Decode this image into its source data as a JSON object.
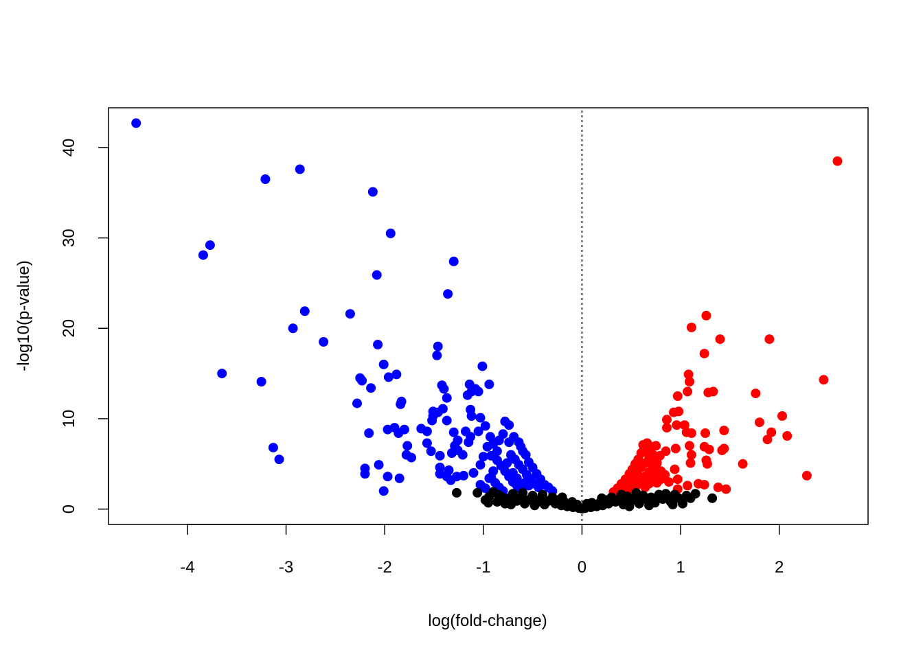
{
  "chart_data": {
    "type": "scatter",
    "title": "",
    "xlabel": "log(fold-change)",
    "ylabel": "-log10(p-value)",
    "xlim": [
      -4.8,
      2.9
    ],
    "ylim": [
      -1.7,
      44.4
    ],
    "x_ticks": [
      -4,
      -3,
      -2,
      -1,
      0,
      1,
      2
    ],
    "x_tick_labels": [
      "-4",
      "-3",
      "-2",
      "-1",
      "0",
      "1",
      "2"
    ],
    "y_ticks": [
      0,
      10,
      20,
      30,
      40
    ],
    "y_tick_labels": [
      "0",
      "10",
      "20",
      "30",
      "40"
    ],
    "vline": {
      "x": 0,
      "style": "dotted",
      "color": "#000000"
    },
    "grid": false,
    "series": [
      {
        "color": "#0000ff",
        "points": [
          [
            -4.52,
            42.7
          ],
          [
            -3.21,
            36.5
          ],
          [
            -2.86,
            37.6
          ],
          [
            -2.12,
            35.1
          ],
          [
            -1.94,
            30.5
          ],
          [
            -3.77,
            29.2
          ],
          [
            -3.84,
            28.1
          ],
          [
            -2.08,
            25.9
          ],
          [
            -1.3,
            27.4
          ],
          [
            -1.36,
            23.8
          ],
          [
            -2.81,
            21.9
          ],
          [
            -2.93,
            20.0
          ],
          [
            -2.35,
            21.6
          ],
          [
            -2.62,
            18.5
          ],
          [
            -2.07,
            18.2
          ],
          [
            -3.65,
            15.0
          ],
          [
            -3.25,
            14.1
          ],
          [
            -2.25,
            14.5
          ],
          [
            -2.23,
            14.2
          ],
          [
            -2.01,
            16.0
          ],
          [
            -1.96,
            14.6
          ],
          [
            -1.88,
            14.9
          ],
          [
            -2.14,
            13.4
          ],
          [
            -1.46,
            18.0
          ],
          [
            -1.47,
            17.0
          ],
          [
            -1.01,
            15.8
          ],
          [
            -1.14,
            13.8
          ],
          [
            -0.94,
            13.8
          ],
          [
            -1.42,
            13.7
          ],
          [
            -1.4,
            13.3
          ],
          [
            -1.12,
            13.0
          ],
          [
            -1.08,
            13.3
          ],
          [
            -1.05,
            13.0
          ],
          [
            -1.16,
            12.6
          ],
          [
            -1.37,
            12.3
          ],
          [
            -1.83,
            11.9
          ],
          [
            -1.84,
            11.6
          ],
          [
            -2.28,
            11.7
          ],
          [
            -1.51,
            10.8
          ],
          [
            -1.46,
            10.7
          ],
          [
            -1.13,
            11.0
          ],
          [
            -1.03,
            10.1
          ],
          [
            -1.51,
            10.3
          ],
          [
            -1.52,
            9.8
          ],
          [
            -1.41,
            11.1
          ],
          [
            -1.12,
            10.3
          ],
          [
            -1.9,
            9.0
          ],
          [
            -1.8,
            8.8
          ],
          [
            -1.97,
            8.8
          ],
          [
            -2.16,
            8.4
          ],
          [
            -1.86,
            8.4
          ],
          [
            -1.63,
            8.9
          ],
          [
            -1.57,
            8.6
          ],
          [
            -1.37,
            9.8
          ],
          [
            -1.3,
            8.5
          ],
          [
            -1.26,
            7.6
          ],
          [
            -1.18,
            8.6
          ],
          [
            -1.13,
            8.0
          ],
          [
            -1.05,
            8.6
          ],
          [
            -0.98,
            9.2
          ],
          [
            -0.93,
            8.0
          ],
          [
            -1.57,
            7.3
          ],
          [
            -1.53,
            6.4
          ],
          [
            -1.78,
            6.0
          ],
          [
            -1.73,
            5.7
          ],
          [
            -1.77,
            7.0
          ],
          [
            -1.29,
            7.0
          ],
          [
            -1.32,
            6.2
          ],
          [
            -1.26,
            6.5
          ],
          [
            -1.21,
            6.0
          ],
          [
            -1.15,
            7.4
          ],
          [
            -1.44,
            5.9
          ],
          [
            -1.44,
            4.6
          ],
          [
            -1.35,
            4.3
          ],
          [
            -1.44,
            3.9
          ],
          [
            -1.37,
            3.6
          ],
          [
            -1.33,
            3.2
          ],
          [
            -1.27,
            3.6
          ],
          [
            -1.2,
            3.7
          ],
          [
            -1.1,
            4.0
          ],
          [
            -1.03,
            4.9
          ],
          [
            -1.0,
            5.8
          ],
          [
            -0.96,
            6.9
          ],
          [
            -0.9,
            7.2
          ],
          [
            -0.84,
            7.6
          ],
          [
            -0.8,
            8.3
          ],
          [
            -0.78,
            9.7
          ],
          [
            -0.74,
            9.3
          ],
          [
            -0.69,
            8.0
          ],
          [
            -0.64,
            7.4
          ],
          [
            -0.6,
            6.4
          ],
          [
            -0.57,
            6.0
          ],
          [
            -0.54,
            5.2
          ],
          [
            -0.5,
            4.6
          ],
          [
            -0.46,
            3.9
          ],
          [
            -0.42,
            3.3
          ],
          [
            -0.38,
            2.7
          ],
          [
            -0.34,
            2.4
          ],
          [
            -0.3,
            2.0
          ],
          [
            -0.86,
            5.4
          ],
          [
            -0.82,
            4.8
          ],
          [
            -0.78,
            4.2
          ],
          [
            -0.74,
            3.6
          ],
          [
            -0.7,
            3.0
          ],
          [
            -0.66,
            2.6
          ],
          [
            -0.62,
            2.2
          ],
          [
            -0.72,
            6.0
          ],
          [
            -0.68,
            5.5
          ],
          [
            -0.64,
            4.9
          ],
          [
            -0.6,
            4.4
          ],
          [
            -0.56,
            3.8
          ],
          [
            -0.52,
            3.3
          ],
          [
            -0.48,
            2.8
          ],
          [
            -0.44,
            2.4
          ],
          [
            -0.9,
            4.2
          ],
          [
            -0.94,
            3.4
          ],
          [
            -0.88,
            2.9
          ],
          [
            -0.84,
            2.4
          ],
          [
            -0.8,
            2.0
          ],
          [
            -0.76,
            5.1
          ],
          [
            -0.7,
            4.0
          ],
          [
            -0.66,
            3.4
          ],
          [
            -0.58,
            2.9
          ],
          [
            -0.54,
            2.6
          ],
          [
            -2.2,
            4.5
          ],
          [
            -2.2,
            3.9
          ],
          [
            -2.06,
            4.9
          ],
          [
            -1.97,
            3.6
          ],
          [
            -2.01,
            2.0
          ],
          [
            -1.85,
            3.4
          ],
          [
            -3.13,
            6.8
          ],
          [
            -3.07,
            5.5
          ],
          [
            -1.03,
            2.7
          ],
          [
            -0.98,
            2.3
          ],
          [
            -0.92,
            3.5
          ],
          [
            -0.62,
            6.9
          ],
          [
            -0.74,
            7.4
          ],
          [
            -0.92,
            5.9
          ],
          [
            -0.86,
            6.4
          ]
        ]
      },
      {
        "color": "#ff0000",
        "points": [
          [
            2.59,
            38.5
          ],
          [
            1.26,
            21.4
          ],
          [
            1.11,
            20.1
          ],
          [
            1.4,
            18.8
          ],
          [
            1.24,
            17.2
          ],
          [
            1.9,
            18.8
          ],
          [
            1.08,
            14.9
          ],
          [
            1.09,
            14.1
          ],
          [
            2.45,
            14.3
          ],
          [
            1.07,
            13.0
          ],
          [
            1.28,
            12.9
          ],
          [
            1.33,
            13.0
          ],
          [
            1.76,
            12.8
          ],
          [
            0.97,
            12.5
          ],
          [
            0.98,
            10.8
          ],
          [
            0.93,
            10.7
          ],
          [
            0.86,
            9.9
          ],
          [
            0.96,
            9.3
          ],
          [
            0.86,
            9.0
          ],
          [
            1.04,
            9.3
          ],
          [
            1.44,
            8.7
          ],
          [
            1.8,
            9.6
          ],
          [
            1.92,
            8.5
          ],
          [
            2.03,
            10.3
          ],
          [
            1.88,
            7.7
          ],
          [
            2.08,
            8.1
          ],
          [
            1.06,
            8.5
          ],
          [
            1.11,
            8.4
          ],
          [
            1.25,
            8.4
          ],
          [
            1.09,
            7.0
          ],
          [
            1.24,
            6.9
          ],
          [
            1.29,
            6.6
          ],
          [
            1.42,
            6.5
          ],
          [
            1.44,
            6.7
          ],
          [
            1.11,
            6.0
          ],
          [
            1.26,
            5.4
          ],
          [
            1.27,
            5.0
          ],
          [
            1.1,
            5.1
          ],
          [
            1.63,
            5.0
          ],
          [
            0.95,
            6.7
          ],
          [
            0.85,
            6.4
          ],
          [
            0.79,
            5.9
          ],
          [
            0.75,
            7.0
          ],
          [
            0.7,
            6.9
          ],
          [
            0.66,
            7.3
          ],
          [
            0.63,
            6.6
          ],
          [
            0.6,
            6.2
          ],
          [
            0.57,
            5.5
          ],
          [
            0.54,
            5.0
          ],
          [
            0.51,
            4.4
          ],
          [
            0.48,
            3.9
          ],
          [
            0.44,
            3.3
          ],
          [
            0.4,
            2.8
          ],
          [
            0.36,
            2.3
          ],
          [
            0.32,
            1.9
          ],
          [
            0.72,
            6.0
          ],
          [
            0.68,
            5.6
          ],
          [
            0.64,
            5.1
          ],
          [
            0.6,
            4.6
          ],
          [
            0.56,
            4.0
          ],
          [
            0.52,
            3.5
          ],
          [
            0.48,
            3.0
          ],
          [
            0.44,
            2.6
          ],
          [
            0.4,
            2.1
          ],
          [
            0.76,
            5.1
          ],
          [
            0.72,
            4.6
          ],
          [
            0.68,
            4.1
          ],
          [
            0.64,
            3.6
          ],
          [
            0.6,
            3.1
          ],
          [
            0.56,
            2.7
          ],
          [
            0.52,
            2.3
          ],
          [
            0.8,
            4.2
          ],
          [
            0.76,
            3.7
          ],
          [
            0.72,
            3.2
          ],
          [
            0.68,
            2.8
          ],
          [
            0.64,
            2.4
          ],
          [
            0.84,
            3.8
          ],
          [
            0.8,
            3.3
          ],
          [
            0.76,
            2.9
          ],
          [
            0.88,
            3.0
          ],
          [
            0.94,
            4.4
          ],
          [
            0.97,
            3.3
          ],
          [
            0.97,
            2.2
          ],
          [
            1.07,
            2.6
          ],
          [
            1.18,
            2.8
          ],
          [
            1.24,
            2.7
          ],
          [
            1.38,
            2.4
          ],
          [
            1.46,
            2.2
          ],
          [
            2.28,
            3.7
          ],
          [
            0.62,
            7.1
          ],
          [
            0.66,
            6.3
          ],
          [
            0.7,
            5.3
          ],
          [
            0.74,
            4.3
          ],
          [
            0.58,
            3.4
          ],
          [
            0.46,
            2.0
          ]
        ]
      },
      {
        "color": "#000000",
        "points": [
          [
            -1.27,
            1.8
          ],
          [
            -1.06,
            1.8
          ],
          [
            -0.98,
            1.0
          ],
          [
            -0.94,
            1.4
          ],
          [
            -0.9,
            1.9
          ],
          [
            -0.86,
            0.8
          ],
          [
            -0.82,
            1.4
          ],
          [
            -0.78,
            0.6
          ],
          [
            -0.74,
            1.2
          ],
          [
            -0.7,
            1.7
          ],
          [
            -0.66,
            0.9
          ],
          [
            -0.62,
            1.3
          ],
          [
            -0.58,
            0.6
          ],
          [
            -0.54,
            1.0
          ],
          [
            -0.5,
            1.5
          ],
          [
            -0.46,
            0.7
          ],
          [
            -0.42,
            1.1
          ],
          [
            -0.38,
            0.5
          ],
          [
            -0.34,
            0.9
          ],
          [
            -0.3,
            1.3
          ],
          [
            -0.27,
            0.6
          ],
          [
            -0.24,
            1.0
          ],
          [
            -0.21,
            0.4
          ],
          [
            -0.18,
            0.8
          ],
          [
            -0.15,
            0.3
          ],
          [
            -0.12,
            0.6
          ],
          [
            -0.09,
            0.2
          ],
          [
            -0.06,
            0.4
          ],
          [
            -0.03,
            0.1
          ],
          [
            0.0,
            0.05
          ],
          [
            0.03,
            0.1
          ],
          [
            0.06,
            0.3
          ],
          [
            0.09,
            0.2
          ],
          [
            0.12,
            0.5
          ],
          [
            0.15,
            0.3
          ],
          [
            0.18,
            0.7
          ],
          [
            0.21,
            0.4
          ],
          [
            0.24,
            1.0
          ],
          [
            0.27,
            0.6
          ],
          [
            0.3,
            1.3
          ],
          [
            0.34,
            0.8
          ],
          [
            0.38,
            1.1
          ],
          [
            0.42,
            0.5
          ],
          [
            0.46,
            1.4
          ],
          [
            0.5,
            0.9
          ],
          [
            0.54,
            1.2
          ],
          [
            0.58,
            0.6
          ],
          [
            0.62,
            1.5
          ],
          [
            0.66,
            1.0
          ],
          [
            0.7,
            1.3
          ],
          [
            0.74,
            0.7
          ],
          [
            0.78,
            1.6
          ],
          [
            0.82,
            1.1
          ],
          [
            0.86,
            1.4
          ],
          [
            0.9,
            0.8
          ],
          [
            0.94,
            1.6
          ],
          [
            0.98,
            1.2
          ],
          [
            1.02,
            0.6
          ],
          [
            1.06,
            1.5
          ],
          [
            1.1,
            1.2
          ],
          [
            1.15,
            1.7
          ],
          [
            1.32,
            1.2
          ],
          [
            -0.1,
            0.8
          ],
          [
            0.1,
            0.7
          ],
          [
            -0.2,
            1.3
          ],
          [
            0.2,
            1.2
          ],
          [
            -0.6,
            1.8
          ],
          [
            0.55,
            1.8
          ],
          [
            -0.85,
            1.6
          ],
          [
            0.85,
            1.7
          ],
          [
            -0.4,
            1.6
          ],
          [
            0.4,
            1.6
          ],
          [
            -0.05,
            0.5
          ],
          [
            0.05,
            0.6
          ],
          [
            -0.95,
            0.7
          ],
          [
            0.92,
            0.5
          ],
          [
            -0.72,
            0.5
          ],
          [
            0.68,
            0.4
          ],
          [
            -0.48,
            0.4
          ],
          [
            0.48,
            0.3
          ]
        ]
      }
    ]
  }
}
